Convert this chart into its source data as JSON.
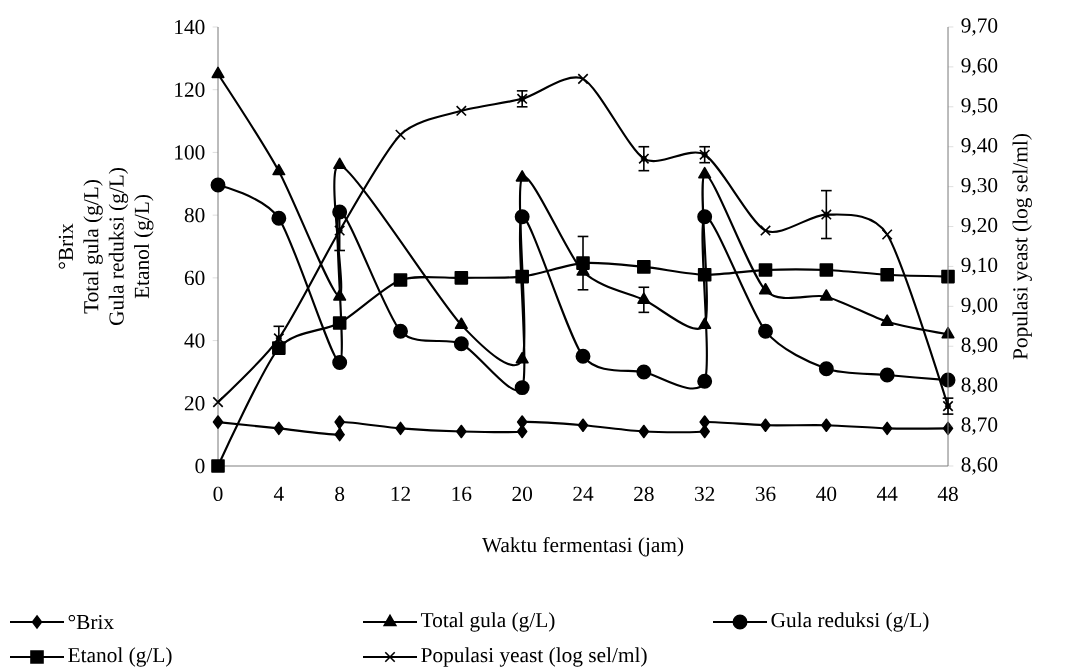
{
  "chart_data": {
    "type": "line",
    "xlabel": "Waktu fermentasi (jam)",
    "ylabel": [
      "°Brix",
      "Total gula (g/L)",
      "Gula reduksi (g/L)",
      "Etanol (g/L)"
    ],
    "y2label": "Populasi yeast (log sel/ml)",
    "xlim": [
      0,
      48
    ],
    "xticks": [
      0,
      4,
      8,
      12,
      16,
      20,
      24,
      28,
      32,
      36,
      40,
      44,
      48
    ],
    "ylim": [
      0,
      140
    ],
    "yticks": [
      0,
      20,
      40,
      60,
      80,
      100,
      120,
      140
    ],
    "y2lim": [
      8.6,
      9.7
    ],
    "y2ticks": [
      {
        "value": 8.6,
        "label": "8,60"
      },
      {
        "value": 8.7,
        "label": "8,70"
      },
      {
        "value": 8.8,
        "label": "8,80"
      },
      {
        "value": 8.9,
        "label": "8,90"
      },
      {
        "value": 9.0,
        "label": "9,00"
      },
      {
        "value": 9.1,
        "label": "9,10"
      },
      {
        "value": 9.2,
        "label": "9,20"
      },
      {
        "value": 9.3,
        "label": "9,30"
      },
      {
        "value": 9.4,
        "label": "9,40"
      },
      {
        "value": 9.5,
        "label": "9,50"
      },
      {
        "value": 9.6,
        "label": "9,60"
      },
      {
        "value": 9.7,
        "label": "9,70"
      }
    ],
    "grid": false,
    "legend": "bottom",
    "line_style": "solid",
    "series": [
      {
        "name": "°Brix",
        "color": "#000000",
        "marker": "diamond",
        "x": [
          0,
          4,
          8,
          8,
          12,
          16,
          20,
          20,
          24,
          28,
          32,
          32,
          36,
          40,
          44,
          48
        ],
        "values": [
          14,
          12,
          10,
          14,
          12,
          11,
          11,
          14,
          13,
          11,
          11,
          14,
          13,
          13,
          12,
          12
        ]
      },
      {
        "name": "Total gula (g/L)",
        "color": "#000000",
        "marker": "triangle",
        "x": [
          0,
          4,
          8,
          8,
          12,
          16,
          20,
          20,
          24,
          28,
          32,
          32,
          36,
          40,
          44,
          48
        ],
        "values": [
          125,
          94,
          54,
          96,
          null,
          45,
          34,
          92,
          62,
          53,
          45,
          93,
          56,
          54,
          46,
          42
        ],
        "errors": [
          null,
          null,
          null,
          null,
          null,
          null,
          null,
          null,
          null,
          4,
          null,
          null,
          null,
          null,
          null,
          null
        ]
      },
      {
        "name": "Gula reduksi (g/L)",
        "color": "#000000",
        "marker": "circle",
        "x": [
          0,
          4,
          8,
          8,
          12,
          16,
          20,
          20,
          24,
          28,
          32,
          32,
          36,
          40,
          44,
          48
        ],
        "values": [
          89.6,
          79,
          33,
          81,
          43,
          39,
          25,
          79.5,
          35,
          30,
          27,
          79.5,
          43,
          31,
          29,
          27.4
        ]
      },
      {
        "name": "Etanol (g/L)",
        "color": "#000000",
        "marker": "square",
        "x": [
          0,
          4,
          8,
          12,
          16,
          20,
          24,
          28,
          32,
          36,
          40,
          44,
          48
        ],
        "values": [
          0,
          37.6,
          45.6,
          59.3,
          60,
          60.4,
          64.7,
          63.5,
          61,
          62.5,
          62.5,
          61,
          60.4
        ],
        "errors": [
          null,
          null,
          null,
          null,
          null,
          null,
          8.5,
          null,
          null,
          null,
          null,
          null,
          null
        ]
      },
      {
        "name": "Populasi yeast (log sel/ml)",
        "color": "#000000",
        "marker": "cross",
        "axis": "y2",
        "x": [
          0,
          4,
          8,
          12,
          16,
          20,
          24,
          28,
          32,
          36,
          40,
          44,
          48
        ],
        "values": [
          8.76,
          8.92,
          9.19,
          9.43,
          9.49,
          9.52,
          9.57,
          9.37,
          9.38,
          9.19,
          9.23,
          9.18,
          8.75
        ],
        "errors": [
          null,
          0.03,
          0.05,
          null,
          null,
          0.02,
          null,
          0.03,
          0.02,
          null,
          0.06,
          null,
          0.02
        ]
      }
    ]
  }
}
